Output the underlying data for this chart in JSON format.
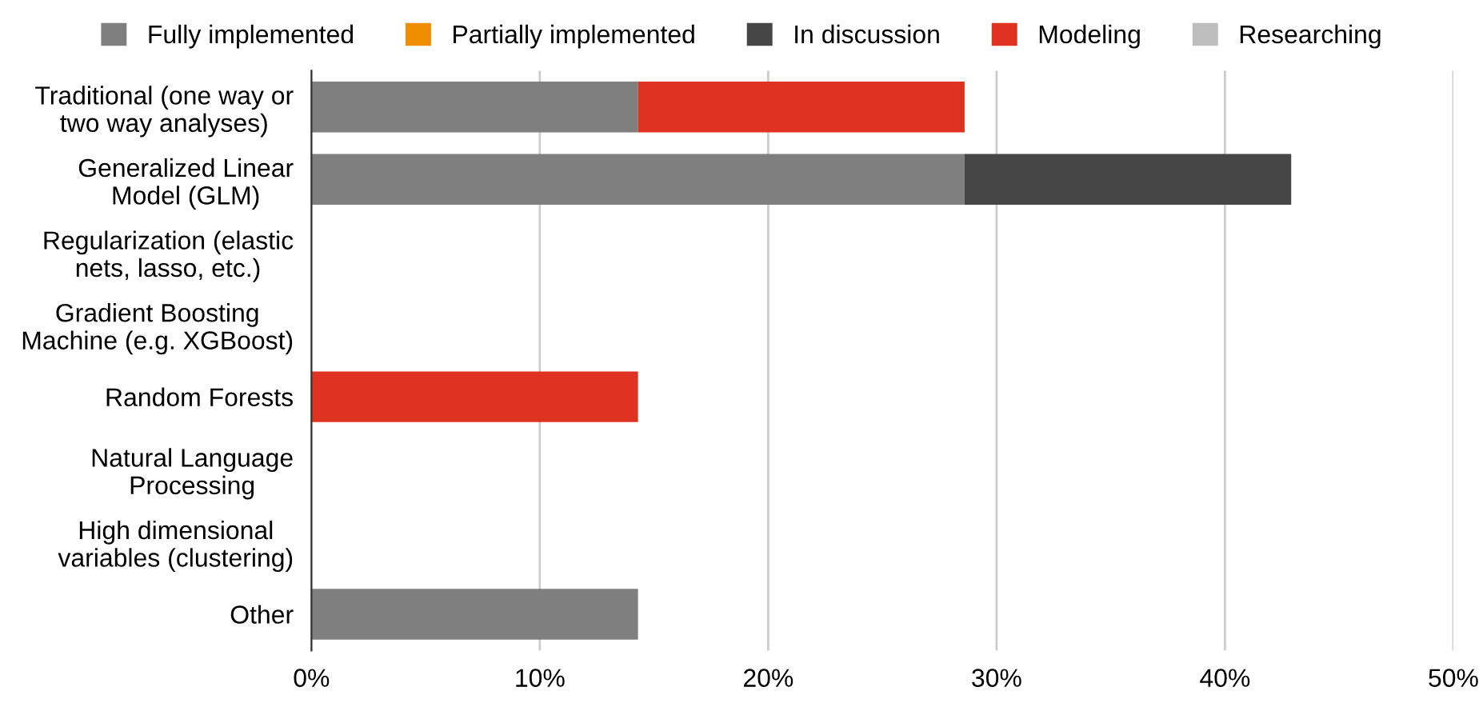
{
  "chart_data": {
    "type": "bar",
    "orientation": "horizontal",
    "stacked": true,
    "categories": [
      "Traditional (one way or\ntwo way analyses)",
      "Generalized Linear\nModel (GLM)",
      "Regularization (elastic\nnets, lasso, etc.)",
      "Gradient Boosting\nMachine (e.g. XGBoost)",
      "Random Forests",
      "Natural Language\nProcessing",
      "High dimensional\nvariables (clustering)",
      "Other"
    ],
    "series": [
      {
        "name": "Fully implemented",
        "color": "#7f7f7f",
        "values": [
          14.3,
          28.6,
          0,
          0,
          0,
          0,
          0,
          14.3
        ]
      },
      {
        "name": "Partially implemented",
        "color": "#ef8e00",
        "values": [
          0,
          0,
          0,
          0,
          0,
          0,
          0,
          0
        ]
      },
      {
        "name": "In discussion",
        "color": "#464646",
        "values": [
          0,
          14.3,
          0,
          0,
          0,
          0,
          0,
          0
        ]
      },
      {
        "name": "Modeling",
        "color": "#e03220",
        "values": [
          14.3,
          0,
          0,
          0,
          14.3,
          0,
          0,
          0
        ]
      },
      {
        "name": "Researching",
        "color": "#bdbdbd",
        "values": [
          0,
          0,
          0,
          0,
          0,
          0,
          0,
          0
        ]
      }
    ],
    "xlim": [
      0,
      50
    ],
    "xticks": [
      {
        "value": 0,
        "label": "0%"
      },
      {
        "value": 10,
        "label": "10%"
      },
      {
        "value": 20,
        "label": "20%"
      },
      {
        "value": 30,
        "label": "30%"
      },
      {
        "value": 40,
        "label": "40%"
      },
      {
        "value": 50,
        "label": "50%"
      }
    ],
    "grid": "x",
    "legend": "top"
  }
}
